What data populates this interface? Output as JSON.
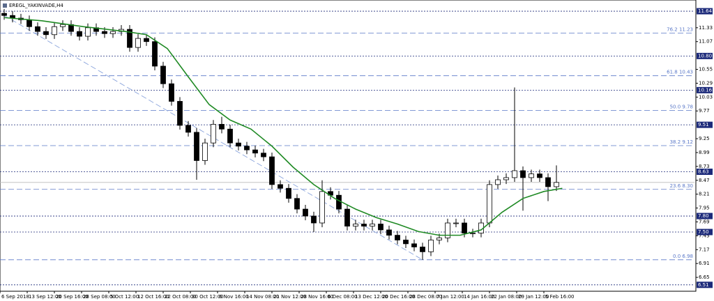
{
  "chart_data": {
    "type": "candlestick",
    "title": "EREGL_YAKINVADE,H4",
    "xlim": [
      0,
      83
    ],
    "ylim": [
      6.39,
      11.85
    ],
    "xticks": [
      {
        "value": 0,
        "label": "6 Sep 2018"
      },
      {
        "value": 3.25,
        "label": "13 Sep 12:00"
      },
      {
        "value": 6.5,
        "label": "20 Sep 16:00"
      },
      {
        "value": 9.75,
        "label": "28 Sep 08:00"
      },
      {
        "value": 13,
        "label": "5 Oct 12:00"
      },
      {
        "value": 16.25,
        "label": "12 Oct 16:00"
      },
      {
        "value": 19.5,
        "label": "22 Oct 08:00"
      },
      {
        "value": 22.75,
        "label": "30 Oct 12:00"
      },
      {
        "value": 26,
        "label": "6 Nov 16:00"
      },
      {
        "value": 29.25,
        "label": "14 Nov 08:00"
      },
      {
        "value": 32.5,
        "label": "21 Nov 12:00"
      },
      {
        "value": 35.75,
        "label": "28 Nov 16:00"
      },
      {
        "value": 39,
        "label": "6 Dec 08:00"
      },
      {
        "value": 42.25,
        "label": "13 Dec 12:00"
      },
      {
        "value": 45.5,
        "label": "20 Dec 16:00"
      },
      {
        "value": 48.75,
        "label": "28 Dec 08:00"
      },
      {
        "value": 52,
        "label": "7 Jan 12:00"
      },
      {
        "value": 55.25,
        "label": "14 Jan 16:00"
      },
      {
        "value": 58.5,
        "label": "22 Jan 08:00"
      },
      {
        "value": 61.75,
        "label": "29 Jan 12:00"
      },
      {
        "value": 65,
        "label": "5 Feb 16:00"
      }
    ],
    "yticks": [
      11.33,
      11.07,
      10.55,
      10.29,
      10.03,
      9.77,
      9.25,
      8.99,
      8.73,
      8.47,
      8.21,
      7.95,
      7.69,
      7.43,
      7.17,
      6.91,
      6.65
    ],
    "levels": [
      11.64,
      {
        "value": 10.8,
        "label": "10.80"
      },
      10.16,
      9.51,
      8.63,
      {
        "value": 7.8,
        "label": "7.80"
      },
      {
        "value": 7.5,
        "label": "7.50"
      },
      6.51
    ],
    "level_color": "#1c2a7a",
    "fib_levels": [
      {
        "value": 11.23,
        "label": "76.2 11.23"
      },
      {
        "value": 10.43,
        "label": "61.8 10.43"
      },
      {
        "value": 9.78,
        "label": "50.0 9.78"
      },
      {
        "value": 9.12,
        "label": "38.2 9.12"
      },
      {
        "value": 8.3,
        "label": "23.6 8.30"
      },
      {
        "value": 6.98,
        "label": "0.0 6.98"
      }
    ],
    "fib_color": "#5a78c8",
    "trendline": {
      "x": [
        0.5,
        50.5
      ],
      "values": [
        11.56,
        6.98
      ],
      "color": "#8aa4dc"
    },
    "ma": {
      "color": "#1f8a24",
      "x": [
        0.5,
        5,
        10,
        15,
        17.5,
        20,
        22.5,
        25,
        27.5,
        30,
        32.5,
        35,
        37.5,
        40,
        42.5,
        45,
        47.5,
        50,
        52.5,
        55,
        57.5,
        60,
        62.5,
        65,
        67.2
      ],
      "values": [
        11.52,
        11.46,
        11.35,
        11.26,
        11.2,
        10.94,
        10.41,
        9.89,
        9.6,
        9.43,
        9.11,
        8.72,
        8.39,
        8.13,
        7.93,
        7.77,
        7.65,
        7.51,
        7.44,
        7.44,
        7.54,
        7.87,
        8.13,
        8.26,
        8.32
      ]
    },
    "ohlc": [
      [
        11.6,
        11.68,
        11.48,
        11.56
      ],
      [
        11.56,
        11.64,
        11.43,
        11.51
      ],
      [
        11.51,
        11.59,
        11.4,
        11.48
      ],
      [
        11.48,
        11.56,
        11.27,
        11.35
      ],
      [
        11.35,
        11.43,
        11.18,
        11.26
      ],
      [
        11.26,
        11.34,
        11.12,
        11.2
      ],
      [
        11.2,
        11.43,
        11.12,
        11.35
      ],
      [
        11.35,
        11.47,
        11.27,
        11.39
      ],
      [
        11.39,
        11.47,
        11.18,
        11.26
      ],
      [
        11.26,
        11.34,
        11.09,
        11.17
      ],
      [
        11.17,
        11.41,
        11.09,
        11.33
      ],
      [
        11.33,
        11.41,
        11.18,
        11.26
      ],
      [
        11.26,
        11.34,
        11.14,
        11.22
      ],
      [
        11.22,
        11.34,
        11.14,
        11.26
      ],
      [
        11.26,
        11.38,
        11.18,
        11.3
      ],
      [
        11.3,
        11.38,
        10.88,
        10.96
      ],
      [
        10.96,
        11.21,
        10.88,
        11.13
      ],
      [
        11.13,
        11.21,
        10.99,
        11.07
      ],
      [
        11.07,
        11.15,
        10.53,
        10.61
      ],
      [
        10.61,
        10.69,
        10.2,
        10.28
      ],
      [
        10.28,
        10.36,
        9.87,
        9.95
      ],
      [
        9.95,
        10.03,
        9.42,
        9.5
      ],
      [
        9.5,
        9.58,
        9.29,
        9.37
      ],
      [
        9.37,
        9.45,
        8.48,
        8.84
      ],
      [
        8.84,
        9.25,
        8.76,
        9.17
      ],
      [
        9.17,
        9.6,
        9.09,
        9.52
      ],
      [
        9.52,
        9.66,
        9.35,
        9.43
      ],
      [
        9.43,
        9.51,
        9.09,
        9.17
      ],
      [
        9.17,
        9.25,
        9.03,
        9.11
      ],
      [
        9.11,
        9.19,
        8.96,
        9.04
      ],
      [
        9.04,
        9.12,
        8.9,
        8.98
      ],
      [
        8.98,
        9.06,
        8.83,
        8.91
      ],
      [
        8.91,
        8.99,
        8.31,
        8.39
      ],
      [
        8.39,
        8.47,
        8.24,
        8.32
      ],
      [
        8.32,
        8.4,
        8.05,
        8.13
      ],
      [
        8.13,
        8.21,
        7.85,
        7.93
      ],
      [
        7.93,
        8.01,
        7.72,
        7.8
      ],
      [
        7.8,
        7.88,
        7.5,
        7.67
      ],
      [
        7.67,
        8.47,
        7.59,
        8.26
      ],
      [
        8.26,
        8.34,
        8.11,
        8.19
      ],
      [
        8.19,
        8.27,
        7.85,
        7.93
      ],
      [
        7.93,
        8.01,
        7.53,
        7.61
      ],
      [
        7.61,
        7.73,
        7.53,
        7.65
      ],
      [
        7.65,
        7.73,
        7.53,
        7.61
      ],
      [
        7.61,
        7.73,
        7.53,
        7.65
      ],
      [
        7.65,
        7.73,
        7.46,
        7.54
      ],
      [
        7.54,
        7.62,
        7.36,
        7.44
      ],
      [
        7.44,
        7.52,
        7.27,
        7.35
      ],
      [
        7.35,
        7.43,
        7.2,
        7.28
      ],
      [
        7.28,
        7.36,
        7.14,
        7.22
      ],
      [
        7.22,
        7.3,
        6.98,
        7.13
      ],
      [
        7.13,
        7.43,
        7.05,
        7.35
      ],
      [
        7.35,
        7.47,
        7.27,
        7.39
      ],
      [
        7.39,
        7.75,
        7.31,
        7.67
      ],
      [
        7.67,
        7.75,
        7.59,
        7.67
      ],
      [
        7.67,
        7.75,
        7.4,
        7.48
      ],
      [
        7.48,
        7.56,
        7.4,
        7.48
      ],
      [
        7.48,
        7.75,
        7.4,
        7.67
      ],
      [
        7.67,
        8.47,
        7.59,
        8.39
      ],
      [
        8.39,
        8.56,
        8.31,
        8.48
      ],
      [
        8.48,
        8.6,
        8.4,
        8.52
      ],
      [
        8.52,
        10.21,
        8.44,
        8.65
      ],
      [
        8.65,
        8.73,
        7.9,
        8.52
      ],
      [
        8.52,
        8.67,
        8.44,
        8.59
      ],
      [
        8.59,
        8.67,
        8.44,
        8.52
      ],
      [
        8.52,
        8.6,
        8.08,
        8.35
      ],
      [
        8.35,
        8.75,
        8.27,
        8.43
      ]
    ]
  }
}
